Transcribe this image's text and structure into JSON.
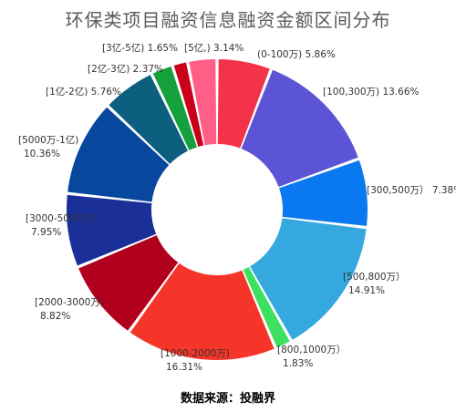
{
  "chart_data": {
    "type": "pie",
    "style": "donut",
    "title": "环保类项目融资信息融资金额区间分布",
    "source": "数据来源：投融界",
    "slices": [
      {
        "label": "(0-100万)",
        "value": 5.86,
        "display": "5.86%",
        "color": "#f2334a"
      },
      {
        "label": "[100,300万)",
        "value": 13.66,
        "display": "13.66%",
        "color": "#5b55d6"
      },
      {
        "label": "[300,500万）",
        "value": 7.38,
        "display": "7.38%",
        "color": "#0a78f0"
      },
      {
        "label": "[500,800万）",
        "value": 14.91,
        "display": "14.91%",
        "color": "#35a8e0"
      },
      {
        "label": "[800,1000万）",
        "value": 1.83,
        "display": "1.83%",
        "color": "#3ee060"
      },
      {
        "label": "[1000-2000万)",
        "value": 16.31,
        "display": "16.31%",
        "color": "#f5352a"
      },
      {
        "label": "[2000-3000万)",
        "value": 8.82,
        "display": "8.82%",
        "color": "#b0001d"
      },
      {
        "label": "[3000-5000万)",
        "value": 7.95,
        "display": "7.95%",
        "color": "#1a2f98"
      },
      {
        "label": "[5000万-1亿)",
        "value": 10.36,
        "display": "10.36%",
        "color": "#07479e"
      },
      {
        "label": "[1亿-2亿)",
        "value": 5.76,
        "display": "5.76%",
        "color": "#0d5f80"
      },
      {
        "label": "[2亿-3亿)",
        "value": 2.37,
        "display": "2.37%",
        "color": "#14a03a"
      },
      {
        "label": "[3亿-5亿)",
        "value": 1.65,
        "display": "1.65%",
        "color": "#c8001a"
      },
      {
        "label": "[5亿,)",
        "value": 3.14,
        "display": "3.14%",
        "color": "#ff5f86"
      }
    ]
  }
}
